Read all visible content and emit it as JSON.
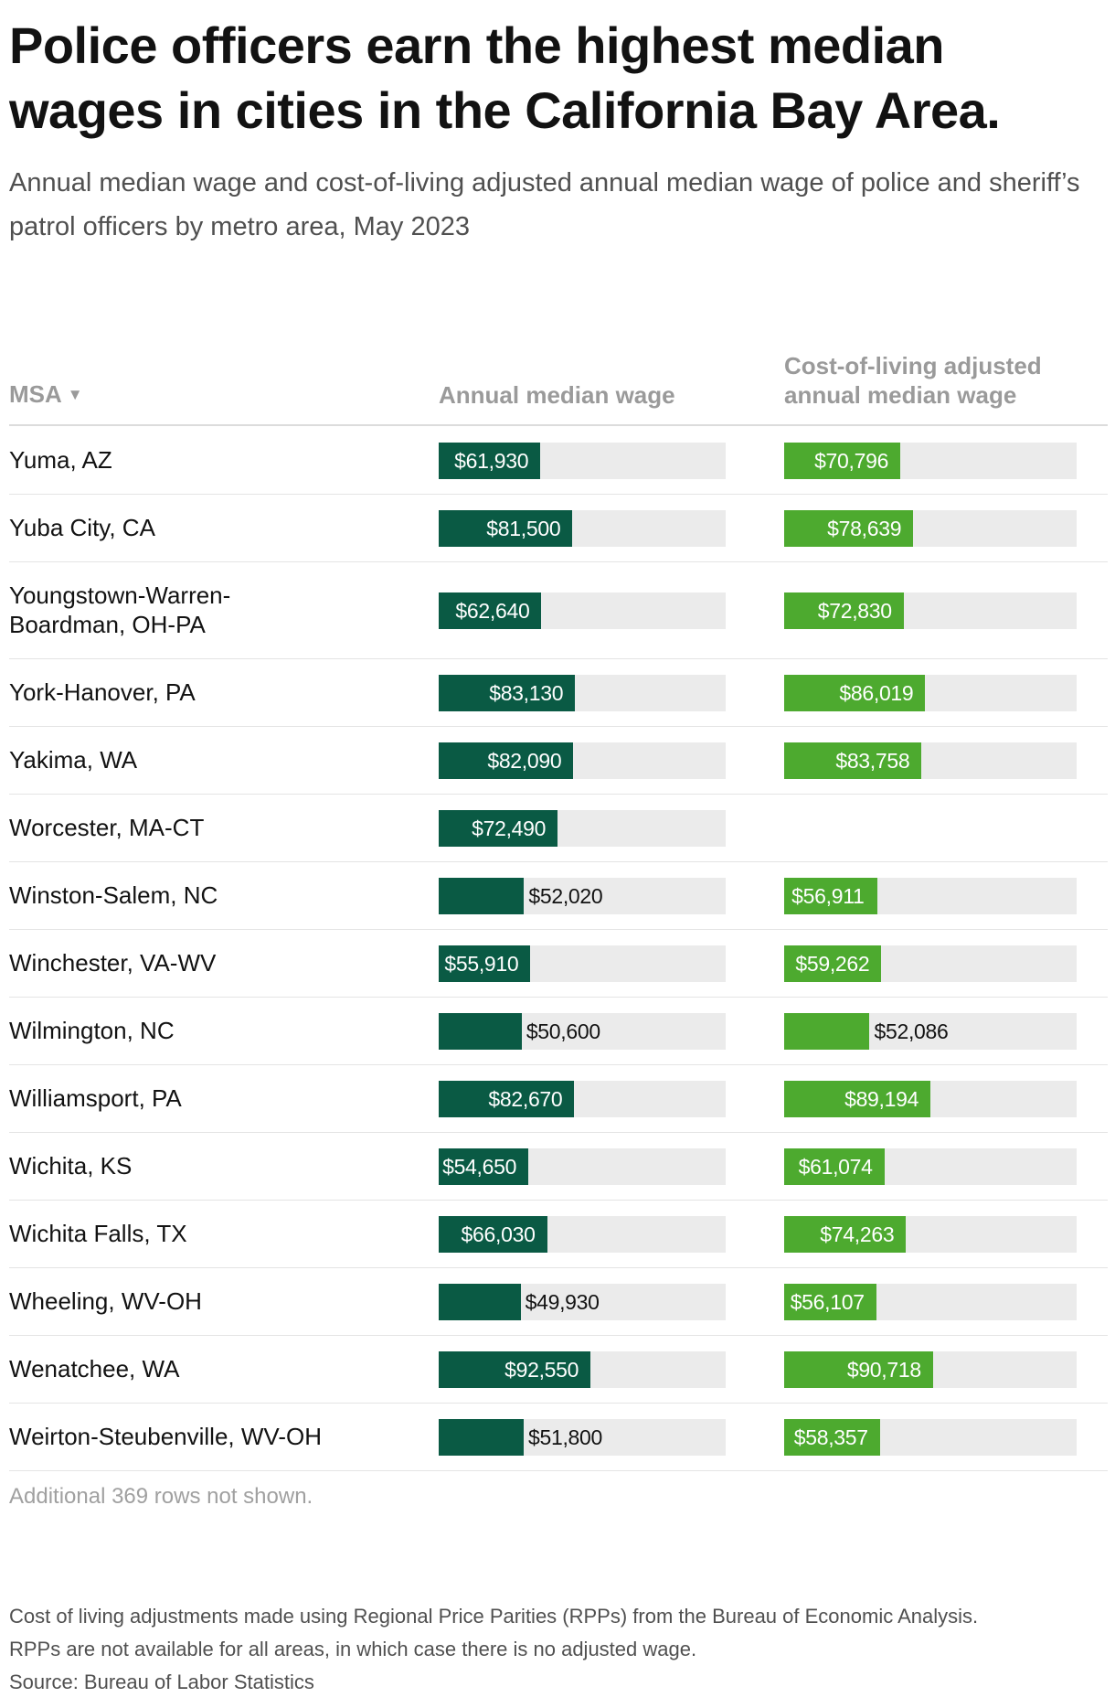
{
  "title": "Police officers earn the highest median wages in cities in the California Bay Area.",
  "subtitle": "Annual median wage and cost-of-living adjusted annual median wage of police and sheriff’s patrol officers by metro area, May 2023",
  "columns": {
    "msa": "MSA",
    "wage": "Annual median wage",
    "adjusted": "Cost-of-living adjusted annual median wage"
  },
  "icons": {
    "sort": "sort-descending-triangle-icon"
  },
  "colors": {
    "wage_bar": "#0a5a44",
    "adjusted_bar": "#4daa2f",
    "track": "#ebebeb"
  },
  "chart_data": {
    "type": "table",
    "scale_max": 130000,
    "rows": [
      {
        "msa": "Yuma, AZ",
        "wage": 61930,
        "wage_label": "$61,930",
        "adjusted": 70796,
        "adjusted_label": "$70,796"
      },
      {
        "msa": "Yuba City, CA",
        "wage": 81500,
        "wage_label": "$81,500",
        "adjusted": 78639,
        "adjusted_label": "$78,639"
      },
      {
        "msa": "Youngstown-Warren-Boardman, OH-PA",
        "wage": 62640,
        "wage_label": "$62,640",
        "adjusted": 72830,
        "adjusted_label": "$72,830"
      },
      {
        "msa": "York-Hanover, PA",
        "wage": 83130,
        "wage_label": "$83,130",
        "adjusted": 86019,
        "adjusted_label": "$86,019"
      },
      {
        "msa": "Yakima, WA",
        "wage": 82090,
        "wage_label": "$82,090",
        "adjusted": 83758,
        "adjusted_label": "$83,758"
      },
      {
        "msa": "Worcester, MA-CT",
        "wage": 72490,
        "wage_label": "$72,490",
        "adjusted": null,
        "adjusted_label": ""
      },
      {
        "msa": "Winston-Salem, NC",
        "wage": 52020,
        "wage_label": "$52,020",
        "adjusted": 56911,
        "adjusted_label": "$56,911"
      },
      {
        "msa": "Winchester, VA-WV",
        "wage": 55910,
        "wage_label": "$55,910",
        "adjusted": 59262,
        "adjusted_label": "$59,262"
      },
      {
        "msa": "Wilmington, NC",
        "wage": 50600,
        "wage_label": "$50,600",
        "adjusted": 52086,
        "adjusted_label": "$52,086"
      },
      {
        "msa": "Williamsport, PA",
        "wage": 82670,
        "wage_label": "$82,670",
        "adjusted": 89194,
        "adjusted_label": "$89,194"
      },
      {
        "msa": "Wichita, KS",
        "wage": 54650,
        "wage_label": "$54,650",
        "adjusted": 61074,
        "adjusted_label": "$61,074"
      },
      {
        "msa": "Wichita Falls, TX",
        "wage": 66030,
        "wage_label": "$66,030",
        "adjusted": 74263,
        "adjusted_label": "$74,263"
      },
      {
        "msa": "Wheeling, WV-OH",
        "wage": 49930,
        "wage_label": "$49,930",
        "adjusted": 56107,
        "adjusted_label": "$56,107"
      },
      {
        "msa": "Wenatchee, WA",
        "wage": 92550,
        "wage_label": "$92,550",
        "adjusted": 90718,
        "adjusted_label": "$90,718"
      },
      {
        "msa": "Weirton-Steubenville, WV-OH",
        "wage": 51800,
        "wage_label": "$51,800",
        "adjusted": 58357,
        "adjusted_label": "$58,357"
      }
    ]
  },
  "rows_note": "Additional 369 rows not shown.",
  "footer": {
    "note_line1": "Cost of living adjustments made using Regional Price Parities (RPPs) from the Bureau of Economic Analysis.",
    "note_line2": "RPPs are not available for all areas, in which case there is no adjusted wage.",
    "source": "Source: Bureau of Labor Statistics"
  }
}
